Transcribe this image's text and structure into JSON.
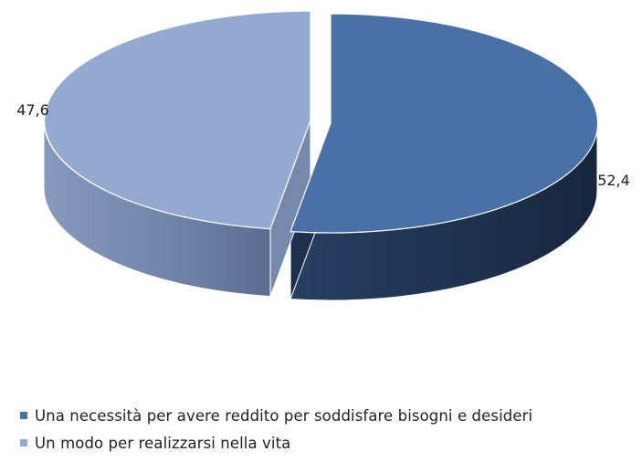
{
  "chart_data": {
    "type": "pie",
    "title": "",
    "slices": [
      {
        "label": "Una necessità per avere reddito per soddisfare bisogni e desideri",
        "value": 52.4,
        "value_label": "52,4",
        "color": "#4a70a8"
      },
      {
        "label": "Un modo per realizzarsi nella vita",
        "value": 47.6,
        "value_label": "47,6",
        "color": "#93a9d1"
      }
    ],
    "legend_position": "bottom-left",
    "style": "3d-exploded"
  }
}
